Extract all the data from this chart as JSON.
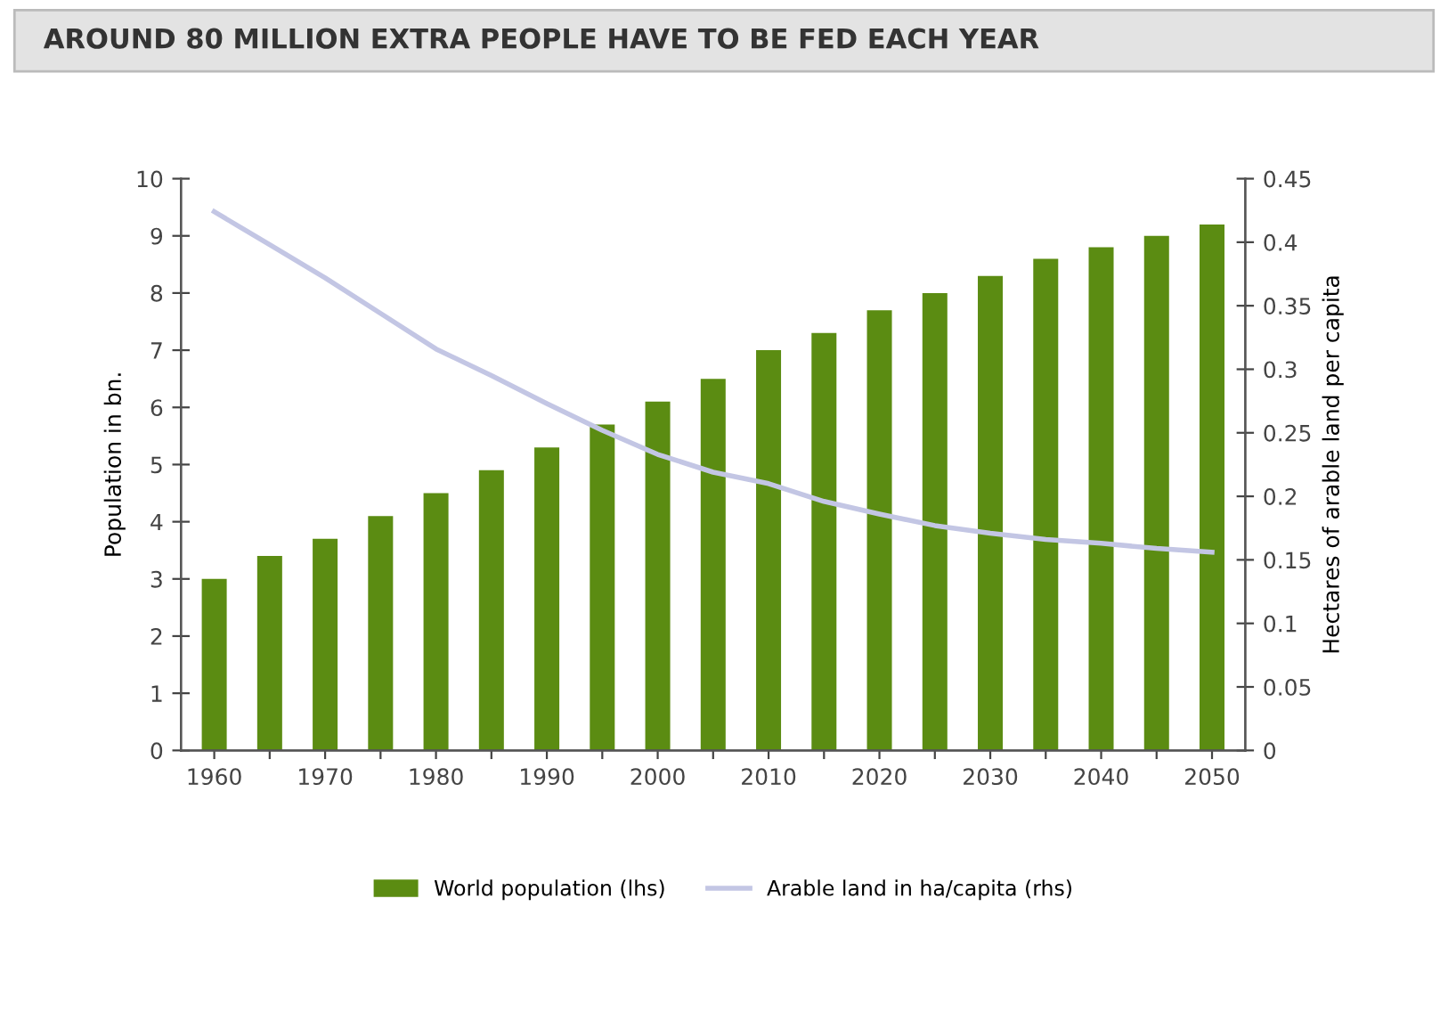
{
  "chart_data": {
    "type": "bar",
    "title": "AROUND 80 MILLION EXTRA PEOPLE HAVE TO BE FED EACH YEAR",
    "ylabel": "Population in bn.",
    "y2label": "Hectares of arable land per capita",
    "categories": [
      "1960",
      null,
      "1970",
      null,
      "1980",
      null,
      "1990",
      null,
      "2000",
      null,
      "2010",
      null,
      "2020",
      null,
      "2030",
      null,
      "2040",
      null,
      "2050"
    ],
    "series": [
      {
        "name": "World population (lhs)",
        "color": "#5b8c12",
        "values": [
          3.0,
          3.4,
          3.7,
          4.1,
          4.5,
          4.9,
          5.3,
          5.7,
          6.1,
          6.5,
          7.0,
          7.3,
          7.7,
          8.0,
          8.3,
          8.6,
          8.8,
          9.0,
          9.2
        ]
      },
      {
        "name": "Arable land in ha/capita (rhs)",
        "type": "line",
        "axis": "y2",
        "color": "#c3c6e4",
        "values": [
          0.424,
          0.398,
          0.372,
          0.344,
          0.316,
          0.295,
          0.273,
          0.252,
          0.233,
          0.219,
          0.21,
          0.196,
          0.186,
          0.177,
          0.171,
          0.166,
          0.163,
          0.159,
          0.156
        ]
      }
    ],
    "ylim": [
      0,
      10
    ],
    "yticks": [
      0,
      1,
      2,
      3,
      4,
      5,
      6,
      7,
      8,
      9,
      10
    ],
    "y2lim": [
      0,
      0.45
    ],
    "y2ticks": [
      0,
      0.05,
      0.1,
      0.15,
      0.2,
      0.25,
      0.3,
      0.35,
      0.4,
      0.45
    ],
    "grid": false,
    "legend": "bottom",
    "marker": "none",
    "line_style": "solid"
  }
}
